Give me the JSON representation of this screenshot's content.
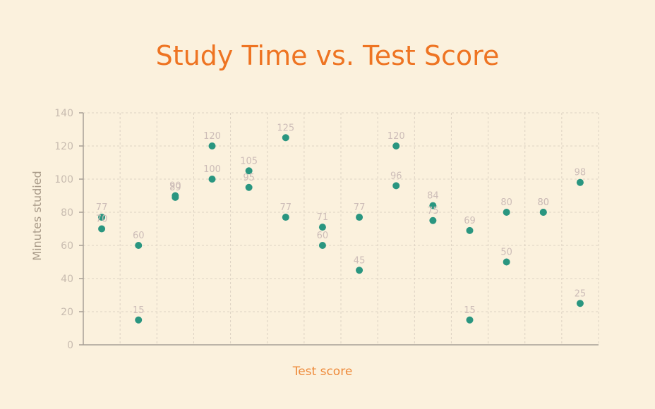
{
  "chart_data": {
    "type": "scatter",
    "title": "Study Time vs. Test Score",
    "xlabel": "Test score",
    "ylabel": "Minutes studied",
    "ylim": [
      0,
      140
    ],
    "yticks": [
      0,
      20,
      40,
      60,
      80,
      100,
      120,
      140
    ],
    "grid": true,
    "point_color": "#2a9680",
    "points": [
      {
        "x": 1,
        "y": 77
      },
      {
        "x": 1,
        "y": 70
      },
      {
        "x": 2,
        "y": 60
      },
      {
        "x": 2,
        "y": 15
      },
      {
        "x": 3,
        "y": 90
      },
      {
        "x": 3,
        "y": 89
      },
      {
        "x": 4,
        "y": 120
      },
      {
        "x": 4,
        "y": 100
      },
      {
        "x": 5,
        "y": 105
      },
      {
        "x": 5,
        "y": 95
      },
      {
        "x": 6,
        "y": 125
      },
      {
        "x": 6,
        "y": 77
      },
      {
        "x": 7,
        "y": 71
      },
      {
        "x": 7,
        "y": 60
      },
      {
        "x": 8,
        "y": 77
      },
      {
        "x": 8,
        "y": 45
      },
      {
        "x": 9,
        "y": 120
      },
      {
        "x": 9,
        "y": 96
      },
      {
        "x": 10,
        "y": 84
      },
      {
        "x": 10,
        "y": 75
      },
      {
        "x": 11,
        "y": 69
      },
      {
        "x": 11,
        "y": 15
      },
      {
        "x": 12,
        "y": 80
      },
      {
        "x": 12,
        "y": 50
      },
      {
        "x": 13,
        "y": 80
      },
      {
        "x": 13,
        "y": 80
      },
      {
        "x": 14,
        "y": 98
      },
      {
        "x": 14,
        "y": 25
      }
    ]
  }
}
